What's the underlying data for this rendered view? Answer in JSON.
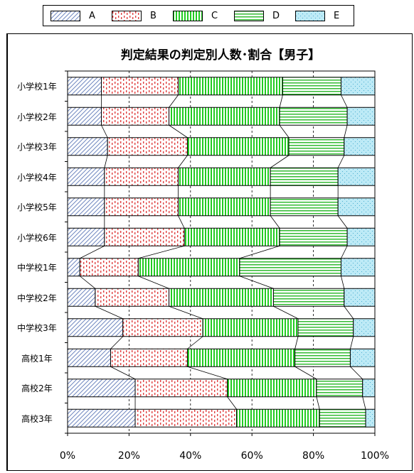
{
  "chart_data": {
    "type": "bar",
    "orientation": "horizontal",
    "stacked": "percent",
    "title": "判定結果の判定別人数･割合【男子】",
    "categories": [
      "小学校1年",
      "小学校2年",
      "小学校3年",
      "小学校4年",
      "小学校5年",
      "小学校6年",
      "中学校1年",
      "中学校2年",
      "中学校3年",
      "高校1年",
      "高校2年",
      "高校3年"
    ],
    "series": [
      {
        "name": "A",
        "color": "#b4c4e8",
        "pattern": "diagonal",
        "values": [
          11,
          11,
          13,
          12,
          12,
          12,
          4,
          9,
          18,
          14,
          22,
          22
        ]
      },
      {
        "name": "B",
        "color": "#e04040",
        "pattern": "dots",
        "values": [
          25,
          22,
          26,
          24,
          24,
          26,
          19,
          24,
          26,
          25,
          30,
          33
        ]
      },
      {
        "name": "C",
        "color": "#22cc22",
        "pattern": "vertical",
        "values": [
          34,
          36,
          33,
          30,
          30,
          31,
          33,
          34,
          31,
          35,
          29,
          27
        ]
      },
      {
        "name": "D",
        "color": "#33bb33",
        "pattern": "horizontal",
        "values": [
          19,
          22,
          18,
          22,
          22,
          22,
          33,
          23,
          18,
          18,
          15,
          15
        ]
      },
      {
        "name": "E",
        "color": "#66ccee",
        "pattern": "dotted",
        "values": [
          11,
          9,
          10,
          12,
          12,
          9,
          11,
          10,
          7,
          8,
          4,
          3
        ]
      }
    ],
    "x_ticks": [
      "0%",
      "20%",
      "40%",
      "60%",
      "80%",
      "100%"
    ],
    "xlim": [
      0,
      100
    ],
    "grid": "vertical-dashed",
    "legend_position": "top",
    "series_lines": true
  }
}
